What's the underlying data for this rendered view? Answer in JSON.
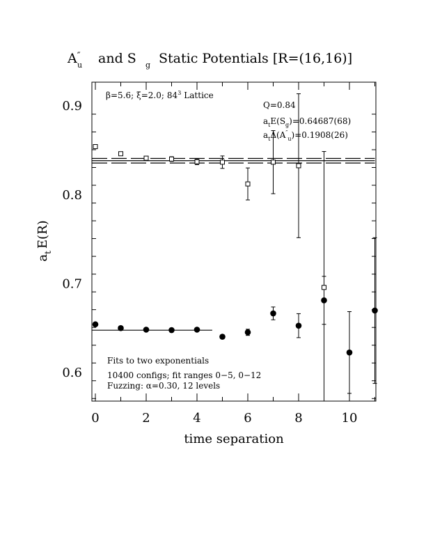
{
  "chart_data": {
    "type": "scatter",
    "title_main": "A",
    "title_prime": "″",
    "title_main_sub": "u",
    "title_and": "and  S",
    "title_and_sub": "g",
    "title_rest": "Static Potentials [R=(16,16)]",
    "xlabel": "time separation",
    "ylabel": "a",
    "ylabel_sub": "t",
    "ylabel_rest": "E(R)",
    "xlim": [
      0,
      11
    ],
    "ylim": [
      0.565,
      0.925
    ],
    "x_ticks_major": [
      0,
      2,
      4,
      6,
      8,
      10
    ],
    "x_tick_labels": [
      "0",
      "2",
      "4",
      "6",
      "8",
      "10"
    ],
    "y_ticks_major": [
      0.6,
      0.7,
      0.8,
      0.9
    ],
    "y_tick_labels": [
      "0.6",
      "0.7",
      "0.8",
      "0.9"
    ],
    "annotations": {
      "lattice_beta": "β=5.6;",
      "lattice_xi": "ξ=2.0;",
      "lattice_size": "84",
      "lattice_size_sup": "3",
      "lattice_word": "Lattice",
      "q_value": "Q=0.84",
      "energy_sg_a": "a",
      "energy_sg_t": "t",
      "energy_sg_e": "E(S",
      "energy_sg_g": "g",
      "energy_sg_value": ")=0.64687(68)",
      "energy_au_a": "a",
      "energy_au_t": "t",
      "energy_au_delta": "Δ(A",
      "energy_au_prime": "″",
      "energy_au_u": "u",
      "energy_au_value": ")=0.1908(26)",
      "fits": "Fits to two exponentials",
      "configs": "10400 configs; fit ranges 0−5, 0−12",
      "fuzzing": "Fuzzing: α=0.30, 12 levels"
    },
    "series": [
      {
        "name": "S_g",
        "marker": "filled-circle",
        "x": [
          0,
          1,
          2,
          3,
          4,
          5,
          6,
          7,
          8,
          9,
          10,
          11
        ],
        "y": [
          0.6535,
          0.6492,
          0.6475,
          0.647,
          0.6475,
          0.6395,
          0.6445,
          0.6658,
          0.652,
          0.6805,
          0.6218,
          0.669
        ],
        "err": [
          0.0013,
          0.0013,
          0.0013,
          0.0014,
          0.0016,
          0.0022,
          0.0035,
          0.0072,
          0.0135,
          0.027,
          0.046,
          0.082
        ]
      },
      {
        "name": "A_u''",
        "marker": "open-square",
        "x": [
          0,
          1,
          2,
          3,
          4,
          5,
          6,
          7,
          8,
          9
        ],
        "y": [
          0.8535,
          0.8455,
          0.8405,
          0.8395,
          0.8365,
          0.836,
          0.8115,
          0.836,
          0.832,
          0.695
        ],
        "err": [
          0.0014,
          0.0016,
          0.0018,
          0.0026,
          0.0033,
          0.007,
          0.018,
          0.0355,
          0.081,
          0.153
        ]
      }
    ],
    "fit_lines": [
      {
        "y": 0.64687,
        "x_range": [
          0,
          4.6
        ],
        "style": "solid"
      },
      {
        "y": 0.83767,
        "x_range": [
          0,
          11
        ],
        "style": "solid"
      },
      {
        "y": 0.835,
        "x_range": [
          0,
          11
        ],
        "style": "dashed"
      },
      {
        "y": 0.8402,
        "x_range": [
          0,
          11
        ],
        "style": "dashed"
      }
    ]
  }
}
